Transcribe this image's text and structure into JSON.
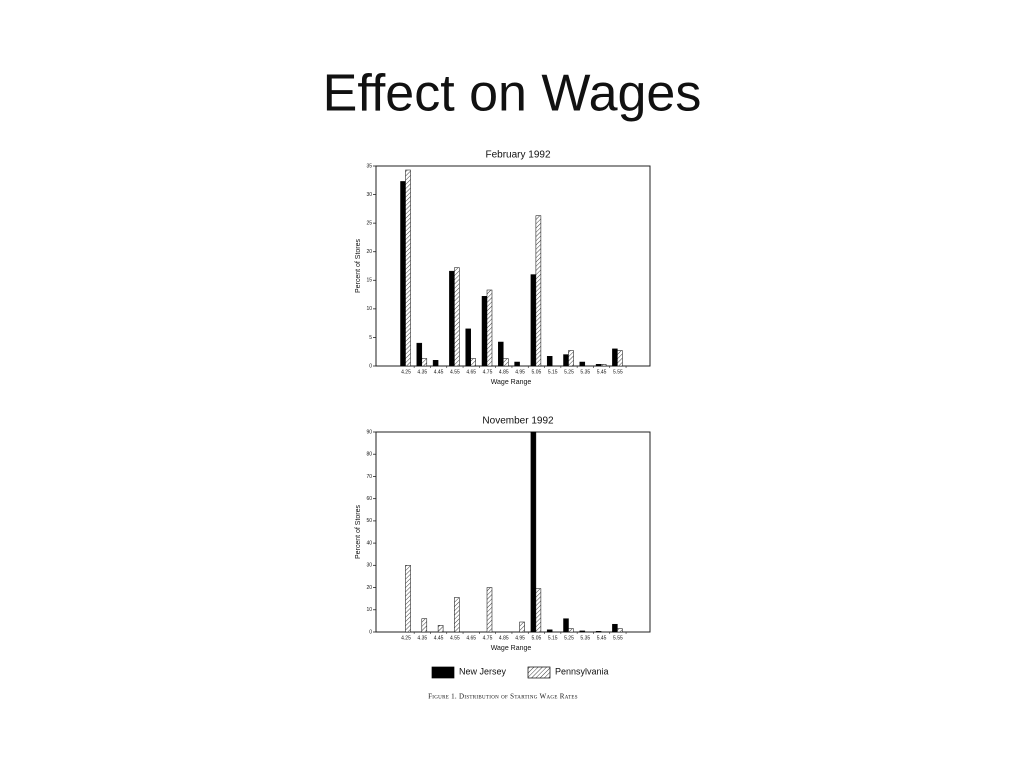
{
  "slide_title": "Effect on Wages",
  "caption": "Figure 1. Distribution of Starting Wage Rates",
  "chart_data": [
    {
      "type": "bar",
      "title": "February 1992",
      "x_label": "Wage Range",
      "y_label": "Percent of Stores",
      "categories": [
        "4.25",
        "4.35",
        "4.45",
        "4.55",
        "4.65",
        "4.75",
        "4.85",
        "4.95",
        "5.05",
        "5.15",
        "5.25",
        "5.35",
        "5.45",
        "5.55"
      ],
      "series": [
        {
          "color": "#000000",
          "values": [
            32.3,
            4,
            1,
            16.6,
            6.5,
            12.2,
            4.2,
            0.7,
            16,
            1.7,
            2,
            0.7,
            0.3,
            3
          ]
        },
        {
          "color": "#444444",
          "pattern": "hatch",
          "values": [
            34.3,
            1.3,
            0,
            17.2,
            1.3,
            13.3,
            1.3,
            0,
            26.3,
            0,
            2.7,
            0,
            0.3,
            2.7
          ]
        }
      ],
      "ylim": [
        0,
        35
      ],
      "yticks": [
        0,
        5,
        10,
        15,
        20,
        25,
        30,
        35
      ]
    },
    {
      "type": "bar",
      "title": "November 1992",
      "x_label": "Wage Range",
      "y_label": "Percent of Stores",
      "categories": [
        "4.25",
        "4.35",
        "4.45",
        "4.55",
        "4.65",
        "4.75",
        "4.85",
        "4.95",
        "5.05",
        "5.15",
        "5.25",
        "5.35",
        "5.45",
        "5.55"
      ],
      "series": [
        {
          "name": "New Jersey",
          "color": "#000000",
          "values": [
            0,
            0,
            0,
            0,
            0,
            0,
            0,
            0,
            90,
            1,
            6,
            0.5,
            0.3,
            3.5
          ]
        },
        {
          "name": "Pennsylvania",
          "color": "#444444",
          "pattern": "hatch",
          "values": [
            30,
            6,
            3,
            15.5,
            0,
            20,
            0,
            4.5,
            19.5,
            0,
            1.5,
            0,
            0,
            1.5
          ]
        }
      ],
      "ylim": [
        0,
        90
      ],
      "yticks": [
        0,
        10,
        20,
        30,
        40,
        50,
        60,
        70,
        80,
        90
      ]
    }
  ]
}
